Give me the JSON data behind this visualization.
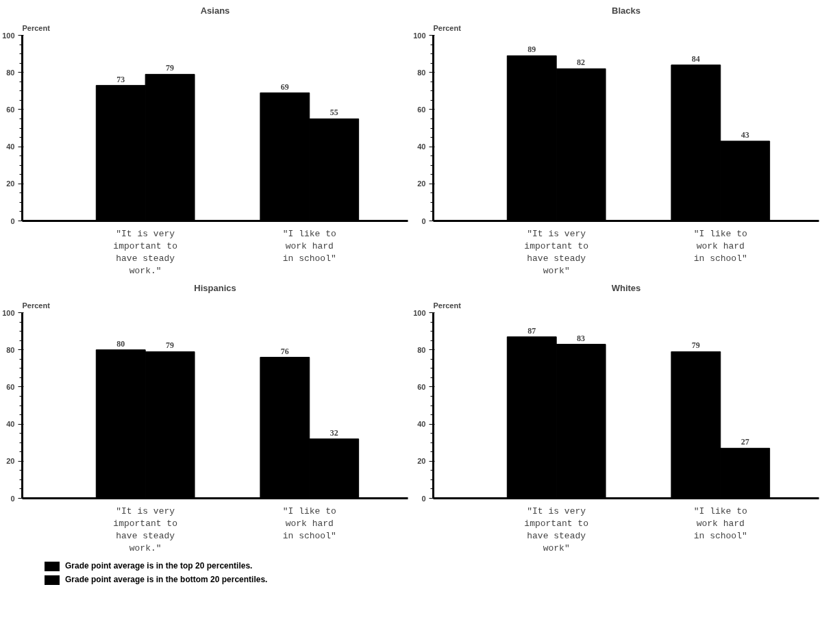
{
  "chart_data": [
    {
      "type": "bar",
      "title": "Asians",
      "ylabel": "Percent",
      "categories": [
        "\"It is very\nimportant to\nhave steady\nwork.\"",
        "\"I like to\nwork hard\nin school\""
      ],
      "series": [
        {
          "color": "#000000",
          "values": [
            73,
            69
          ]
        },
        {
          "color": "#000000",
          "values": [
            79,
            55
          ]
        }
      ],
      "ylim": [
        0,
        100
      ],
      "yticks": [
        0,
        20,
        40,
        60,
        80,
        100
      ],
      "data_labels": true,
      "grid": false,
      "legend": false
    },
    {
      "type": "bar",
      "title": "Blacks",
      "ylabel": "Percent",
      "categories": [
        "\"It is very\nimportant to\nhave steady\nwork\"",
        "\"I like to\nwork hard\nin school\""
      ],
      "series": [
        {
          "color": "#000000",
          "values": [
            89,
            84
          ]
        },
        {
          "color": "#000000",
          "values": [
            82,
            43
          ]
        }
      ],
      "ylim": [
        0,
        100
      ],
      "yticks": [
        0,
        20,
        40,
        60,
        80,
        100
      ],
      "data_labels": true,
      "grid": false,
      "legend": false
    },
    {
      "type": "bar",
      "title": "Hispanics",
      "ylabel": "Percent",
      "categories": [
        "\"It is very\nimportant to\nhave steady\nwork.\"",
        "\"I like to\nwork hard\nin school\""
      ],
      "series": [
        {
          "name": "Grade point average is in the top 20 percentiles.",
          "color": "#000000",
          "values": [
            80,
            76
          ]
        },
        {
          "name": "Grade point average is in the bottom 20 percentiles.",
          "color": "#000000",
          "values": [
            79,
            32
          ]
        }
      ],
      "ylim": [
        0,
        100
      ],
      "yticks": [
        0,
        20,
        40,
        60,
        80,
        100
      ],
      "data_labels": true,
      "grid": false,
      "legend": "bottom"
    },
    {
      "type": "bar",
      "title": "Whites",
      "ylabel": "Percent",
      "categories": [
        "\"It is very\nimportant to\nhave steady\nwork\"",
        "\"I like to\nwork hard\nin school\""
      ],
      "series": [
        {
          "color": "#000000",
          "values": [
            87,
            79
          ]
        },
        {
          "color": "#000000",
          "values": [
            83,
            27
          ]
        }
      ],
      "ylim": [
        0,
        100
      ],
      "yticks": [
        0,
        20,
        40,
        60,
        80,
        100
      ],
      "data_labels": true,
      "grid": false,
      "legend": false
    }
  ]
}
